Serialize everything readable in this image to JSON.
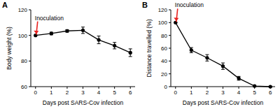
{
  "chart_data": [
    {
      "type": "line",
      "title": "A",
      "x_label": "Days post SARS-Cov infection",
      "y_label": "Body weight (%)",
      "x": [
        0,
        1,
        2,
        3,
        4,
        5,
        6
      ],
      "values": [
        100,
        101.5,
        103.5,
        104,
        96.5,
        92,
        86.5
      ],
      "errors": [
        0,
        1,
        1,
        2.5,
        3,
        2.5,
        3
      ],
      "xlim": [
        -0.3,
        6.3
      ],
      "xticks": [
        0,
        1,
        2,
        3,
        4,
        5,
        6
      ],
      "ylim": [
        60,
        120
      ],
      "yticks": [
        60,
        80,
        100,
        120
      ],
      "grid": false,
      "color": "#000000",
      "marker": "circle",
      "annotations": [
        {
          "text": "Inoculation",
          "x": 0,
          "y": 100,
          "color": "#e8211f"
        }
      ]
    },
    {
      "type": "line",
      "title": "B",
      "x_label": "Days post SARS-Cov infection",
      "y_label": "Distance travelled (%)",
      "x": [
        0,
        1,
        2,
        3,
        4,
        5,
        6
      ],
      "values": [
        100,
        57,
        45,
        32,
        13,
        1,
        0
      ],
      "errors": [
        0,
        4,
        5,
        5,
        3,
        1,
        0
      ],
      "xlim": [
        -0.3,
        6.3
      ],
      "xticks": [
        0,
        1,
        2,
        3,
        4,
        5,
        6
      ],
      "ylim": [
        0,
        120
      ],
      "yticks": [
        0,
        20,
        40,
        60,
        80,
        100,
        120
      ],
      "grid": false,
      "color": "#000000",
      "marker": "circle",
      "annotations": [
        {
          "text": "Inoculation",
          "x": 0,
          "y": 100,
          "color": "#e8211f"
        }
      ]
    }
  ]
}
